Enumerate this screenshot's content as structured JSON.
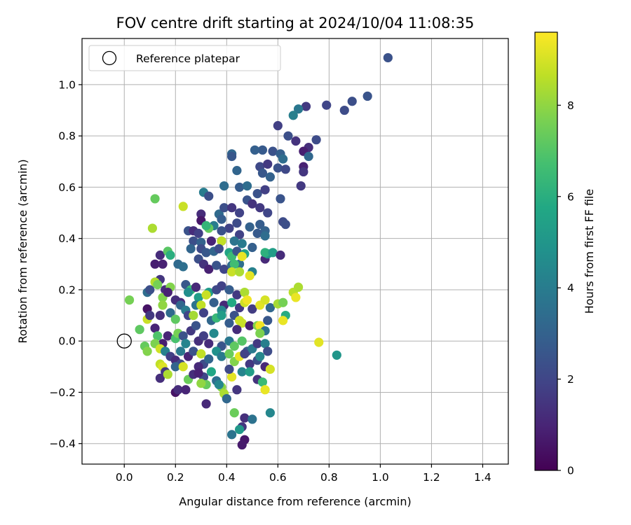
{
  "chart_data": {
    "type": "scatter",
    "title": "FOV centre drift starting at 2024/10/04 11:08:35",
    "xlabel": "Angular distance from reference (arcmin)",
    "ylabel": "Rotation from reference (arcmin)",
    "xlim": [
      -0.165,
      1.5
    ],
    "ylim": [
      -0.48,
      1.18
    ],
    "xticks": [
      0.0,
      0.2,
      0.4,
      0.6,
      0.8,
      1.0,
      1.2,
      1.4
    ],
    "xtick_labels": [
      "0.0",
      "0.2",
      "0.4",
      "0.6",
      "0.8",
      "1.0",
      "1.2",
      "1.4"
    ],
    "yticks": [
      -0.4,
      -0.2,
      0.0,
      0.2,
      0.4,
      0.6,
      0.8,
      1.0
    ],
    "ytick_labels": [
      "−0.4",
      "−0.2",
      "0.0",
      "0.2",
      "0.4",
      "0.6",
      "0.8",
      "1.0"
    ],
    "grid": true,
    "legend": {
      "placement": "top-left",
      "entries": [
        "Reference platepar"
      ]
    },
    "reference_point": {
      "x": 0.0,
      "y": 0.0
    },
    "colorbar": {
      "label": "Hours from first FF file",
      "colormap": "viridis",
      "range": [
        0,
        9.6
      ],
      "ticks": [
        0,
        2,
        4,
        6,
        8
      ],
      "tick_labels": [
        "0",
        "2",
        "4",
        "6",
        "8"
      ]
    },
    "points": [
      [
        1.03,
        1.105,
        2.4
      ],
      [
        0.95,
        0.955,
        2.5
      ],
      [
        0.89,
        0.935,
        2.3
      ],
      [
        0.86,
        0.9,
        2.2
      ],
      [
        0.79,
        0.92,
        2.0
      ],
      [
        0.71,
        0.915,
        1.6
      ],
      [
        0.68,
        0.905,
        3.8
      ],
      [
        0.66,
        0.88,
        4.1
      ],
      [
        0.75,
        0.785,
        2.2
      ],
      [
        0.72,
        0.755,
        1.3
      ],
      [
        0.64,
        0.8,
        2.3
      ],
      [
        0.6,
        0.84,
        1.8
      ],
      [
        0.67,
        0.78,
        1.4
      ],
      [
        0.7,
        0.74,
        0.8
      ],
      [
        0.72,
        0.72,
        3.2
      ],
      [
        0.54,
        0.745,
        2.7
      ],
      [
        0.58,
        0.74,
        2.4
      ],
      [
        0.61,
        0.73,
        2.9
      ],
      [
        0.62,
        0.71,
        3.4
      ],
      [
        0.42,
        0.73,
        3.2
      ],
      [
        0.42,
        0.72,
        2.6
      ],
      [
        0.51,
        0.745,
        2.9
      ],
      [
        0.53,
        0.68,
        2.1
      ],
      [
        0.56,
        0.69,
        1.6
      ],
      [
        0.6,
        0.675,
        2.4
      ],
      [
        0.63,
        0.67,
        2.1
      ],
      [
        0.7,
        0.68,
        0.9
      ],
      [
        0.7,
        0.66,
        1.5
      ],
      [
        0.44,
        0.665,
        3.1
      ],
      [
        0.54,
        0.655,
        2.6
      ],
      [
        0.57,
        0.64,
        3.0
      ],
      [
        0.39,
        0.605,
        3.4
      ],
      [
        0.45,
        0.6,
        2.8
      ],
      [
        0.48,
        0.605,
        3.4
      ],
      [
        0.52,
        0.575,
        2.4
      ],
      [
        0.55,
        0.59,
        1.8
      ],
      [
        0.69,
        0.605,
        1.6
      ],
      [
        0.31,
        0.58,
        4.0
      ],
      [
        0.33,
        0.565,
        2.3
      ],
      [
        0.37,
        0.495,
        3.3
      ],
      [
        0.39,
        0.52,
        2.3
      ],
      [
        0.42,
        0.52,
        1.5
      ],
      [
        0.45,
        0.5,
        1.9
      ],
      [
        0.48,
        0.55,
        2.5
      ],
      [
        0.5,
        0.535,
        1.4
      ],
      [
        0.53,
        0.52,
        1.6
      ],
      [
        0.56,
        0.5,
        2.0
      ],
      [
        0.61,
        0.555,
        2.5
      ],
      [
        0.3,
        0.495,
        1.2
      ],
      [
        0.35,
        0.45,
        4.0
      ],
      [
        0.38,
        0.475,
        2.8
      ],
      [
        0.41,
        0.44,
        1.9
      ],
      [
        0.44,
        0.46,
        2.2
      ],
      [
        0.49,
        0.445,
        3.0
      ],
      [
        0.53,
        0.455,
        2.8
      ],
      [
        0.55,
        0.43,
        3.0
      ],
      [
        0.62,
        0.465,
        2.2
      ],
      [
        0.63,
        0.455,
        2.3
      ],
      [
        0.12,
        0.555,
        7.3
      ],
      [
        0.23,
        0.525,
        8.8
      ],
      [
        0.11,
        0.44,
        8.4
      ],
      [
        0.33,
        0.44,
        7.3
      ],
      [
        0.3,
        0.47,
        0.6
      ],
      [
        0.32,
        0.45,
        6.3
      ],
      [
        0.25,
        0.43,
        2.4
      ],
      [
        0.27,
        0.43,
        1.2
      ],
      [
        0.29,
        0.42,
        1.8
      ],
      [
        0.38,
        0.43,
        2.4
      ],
      [
        0.45,
        0.415,
        1.9
      ],
      [
        0.52,
        0.42,
        2.7
      ],
      [
        0.55,
        0.41,
        3.4
      ],
      [
        0.27,
        0.39,
        2.3
      ],
      [
        0.3,
        0.385,
        3.0
      ],
      [
        0.34,
        0.39,
        1.0
      ],
      [
        0.38,
        0.39,
        2.2
      ],
      [
        0.43,
        0.39,
        3.7
      ],
      [
        0.46,
        0.38,
        3.9
      ],
      [
        0.5,
        0.365,
        2.9
      ],
      [
        0.55,
        0.32,
        1.1
      ],
      [
        0.56,
        0.34,
        5.0
      ],
      [
        0.38,
        0.39,
        8.7
      ],
      [
        0.14,
        0.335,
        1.2
      ],
      [
        0.17,
        0.35,
        7.1
      ],
      [
        0.18,
        0.335,
        6.0
      ],
      [
        0.26,
        0.36,
        3.1
      ],
      [
        0.3,
        0.36,
        2.2
      ],
      [
        0.32,
        0.345,
        2.6
      ],
      [
        0.35,
        0.35,
        3.1
      ],
      [
        0.37,
        0.36,
        2.2
      ],
      [
        0.41,
        0.345,
        5.6
      ],
      [
        0.42,
        0.33,
        6.5
      ],
      [
        0.44,
        0.35,
        2.5
      ],
      [
        0.47,
        0.34,
        5.5
      ],
      [
        0.55,
        0.345,
        6.1
      ],
      [
        0.58,
        0.345,
        5.3
      ],
      [
        0.61,
        0.335,
        1.2
      ],
      [
        0.12,
        0.3,
        0.8
      ],
      [
        0.15,
        0.3,
        0.9
      ],
      [
        0.21,
        0.3,
        3.3
      ],
      [
        0.23,
        0.29,
        3.5
      ],
      [
        0.29,
        0.32,
        2.3
      ],
      [
        0.31,
        0.3,
        1.4
      ],
      [
        0.33,
        0.28,
        0.9
      ],
      [
        0.36,
        0.295,
        2.5
      ],
      [
        0.39,
        0.28,
        2.0
      ],
      [
        0.42,
        0.295,
        3.3
      ],
      [
        0.45,
        0.3,
        3.5
      ],
      [
        0.46,
        0.33,
        9.3
      ],
      [
        0.43,
        0.3,
        6.6
      ],
      [
        0.5,
        0.27,
        4.2
      ],
      [
        0.42,
        0.27,
        8.8
      ],
      [
        0.45,
        0.27,
        8.4
      ],
      [
        0.14,
        0.24,
        1.5
      ],
      [
        0.16,
        0.2,
        1.3
      ],
      [
        0.18,
        0.21,
        7.8
      ],
      [
        0.24,
        0.22,
        2.6
      ],
      [
        0.26,
        0.2,
        6.5
      ],
      [
        0.28,
        0.21,
        1.1
      ],
      [
        0.33,
        0.19,
        5.2
      ],
      [
        0.36,
        0.2,
        2.1
      ],
      [
        0.38,
        0.215,
        1.9
      ],
      [
        0.41,
        0.2,
        2.8
      ],
      [
        0.44,
        0.18,
        1.6
      ],
      [
        0.47,
        0.19,
        8.4
      ],
      [
        0.49,
        0.255,
        9.2
      ],
      [
        0.09,
        0.19,
        3.4
      ],
      [
        0.1,
        0.2,
        2.3
      ],
      [
        0.12,
        0.23,
        8.5
      ],
      [
        0.13,
        0.22,
        7.6
      ],
      [
        0.15,
        0.17,
        7.8
      ],
      [
        0.17,
        0.19,
        0.9
      ],
      [
        0.2,
        0.16,
        1.3
      ],
      [
        0.22,
        0.15,
        1.2
      ],
      [
        0.25,
        0.19,
        4.7
      ],
      [
        0.29,
        0.17,
        5.3
      ],
      [
        0.32,
        0.18,
        8.8
      ],
      [
        0.35,
        0.15,
        2.9
      ],
      [
        0.39,
        0.14,
        1.1
      ],
      [
        0.42,
        0.15,
        5.8
      ],
      [
        0.45,
        0.13,
        1.6
      ],
      [
        0.47,
        0.15,
        8.9
      ],
      [
        0.48,
        0.16,
        9.4
      ],
      [
        0.5,
        0.125,
        1.7
      ],
      [
        0.53,
        0.14,
        9.2
      ],
      [
        0.55,
        0.16,
        9.0
      ],
      [
        0.57,
        0.13,
        3.2
      ],
      [
        0.6,
        0.145,
        8.3
      ],
      [
        0.62,
        0.15,
        7.6
      ],
      [
        0.66,
        0.19,
        8.6
      ],
      [
        0.68,
        0.21,
        8.4
      ],
      [
        0.67,
        0.17,
        9.3
      ],
      [
        0.63,
        0.1,
        5.9
      ],
      [
        0.62,
        0.08,
        9.3
      ],
      [
        0.02,
        0.16,
        7.6
      ],
      [
        0.06,
        0.045,
        7.2
      ],
      [
        0.09,
        0.085,
        8.8
      ],
      [
        0.09,
        0.125,
        0.5
      ],
      [
        0.1,
        0.1,
        1.6
      ],
      [
        0.12,
        0.05,
        1.0
      ],
      [
        0.14,
        0.1,
        1.3
      ],
      [
        0.15,
        0.14,
        8.0
      ],
      [
        0.18,
        0.11,
        3.3
      ],
      [
        0.2,
        0.085,
        7.2
      ],
      [
        0.22,
        0.14,
        3.2
      ],
      [
        0.24,
        0.12,
        4.0
      ],
      [
        0.25,
        0.1,
        2.0
      ],
      [
        0.27,
        0.1,
        8.3
      ],
      [
        0.28,
        0.14,
        3.7
      ],
      [
        0.3,
        0.14,
        8.7
      ],
      [
        0.31,
        0.11,
        1.9
      ],
      [
        0.34,
        0.08,
        3.2
      ],
      [
        0.36,
        0.09,
        6.4
      ],
      [
        0.38,
        0.12,
        4.4
      ],
      [
        0.38,
        0.1,
        5.3
      ],
      [
        0.41,
        0.07,
        2.8
      ],
      [
        0.43,
        0.1,
        2.4
      ],
      [
        0.45,
        0.08,
        8.9
      ],
      [
        0.46,
        0.07,
        8.8
      ],
      [
        0.49,
        0.06,
        0.8
      ],
      [
        0.52,
        0.06,
        7.8
      ],
      [
        0.53,
        0.06,
        9.4
      ],
      [
        0.55,
        0.04,
        3.6
      ],
      [
        0.56,
        0.08,
        2.6
      ],
      [
        0.44,
        0.045,
        1.2
      ],
      [
        0.76,
        -0.005,
        9.2
      ],
      [
        0.83,
        -0.055,
        5.0
      ],
      [
        0.13,
        0.02,
        6.9
      ],
      [
        0.15,
        -0.01,
        0.8
      ],
      [
        0.17,
        0.02,
        1.0
      ],
      [
        0.2,
        0.01,
        6.8
      ],
      [
        0.21,
        0.03,
        7.6
      ],
      [
        0.23,
        0.02,
        2.4
      ],
      [
        0.24,
        -0.01,
        4.3
      ],
      [
        0.26,
        0.04,
        1.6
      ],
      [
        0.28,
        0.06,
        2.5
      ],
      [
        0.29,
        0.0,
        1.3
      ],
      [
        0.31,
        0.02,
        1.8
      ],
      [
        0.33,
        -0.01,
        1.2
      ],
      [
        0.35,
        0.03,
        4.5
      ],
      [
        0.38,
        -0.02,
        2.5
      ],
      [
        0.41,
        0.0,
        3.8
      ],
      [
        0.43,
        -0.02,
        7.2
      ],
      [
        0.46,
        0.0,
        7.0
      ],
      [
        0.48,
        -0.04,
        2.8
      ],
      [
        0.5,
        -0.03,
        3.9
      ],
      [
        0.52,
        -0.01,
        1.6
      ],
      [
        0.55,
        -0.01,
        4.1
      ],
      [
        0.56,
        -0.04,
        2.2
      ],
      [
        0.08,
        -0.02,
        7.3
      ],
      [
        0.09,
        -0.04,
        7.8
      ],
      [
        0.12,
        -0.01,
        7.7
      ],
      [
        0.14,
        -0.03,
        8.9
      ],
      [
        0.16,
        -0.04,
        4.2
      ],
      [
        0.18,
        -0.06,
        1.8
      ],
      [
        0.2,
        -0.075,
        1.2
      ],
      [
        0.22,
        -0.09,
        2.1
      ],
      [
        0.25,
        -0.06,
        1.0
      ],
      [
        0.27,
        -0.04,
        2.4
      ],
      [
        0.3,
        -0.05,
        8.7
      ],
      [
        0.31,
        -0.09,
        2.2
      ],
      [
        0.33,
        -0.07,
        3.1
      ],
      [
        0.36,
        -0.04,
        4.8
      ],
      [
        0.38,
        -0.06,
        3.9
      ],
      [
        0.41,
        -0.05,
        7.4
      ],
      [
        0.43,
        -0.08,
        7.8
      ],
      [
        0.45,
        -0.06,
        9.3
      ],
      [
        0.47,
        -0.05,
        1.9
      ],
      [
        0.49,
        -0.09,
        1.6
      ],
      [
        0.52,
        -0.075,
        2.3
      ],
      [
        0.53,
        -0.06,
        4.4
      ],
      [
        0.55,
        -0.1,
        1.1
      ],
      [
        0.57,
        -0.11,
        9.0
      ],
      [
        0.14,
        -0.09,
        8.7
      ],
      [
        0.15,
        -0.1,
        9.1
      ],
      [
        0.16,
        -0.12,
        1.6
      ],
      [
        0.14,
        -0.145,
        1.3
      ],
      [
        0.17,
        -0.13,
        8.4
      ],
      [
        0.2,
        -0.1,
        3.1
      ],
      [
        0.23,
        -0.1,
        9.0
      ],
      [
        0.25,
        -0.15,
        7.4
      ],
      [
        0.27,
        -0.13,
        1.3
      ],
      [
        0.29,
        -0.1,
        1.1
      ],
      [
        0.31,
        -0.14,
        2.0
      ],
      [
        0.32,
        -0.17,
        7.3
      ],
      [
        0.34,
        -0.12,
        5.7
      ],
      [
        0.36,
        -0.155,
        3.5
      ],
      [
        0.38,
        -0.18,
        7.9
      ],
      [
        0.39,
        -0.205,
        8.4
      ],
      [
        0.4,
        -0.225,
        3.2
      ],
      [
        0.42,
        -0.14,
        9.2
      ],
      [
        0.44,
        -0.19,
        1.5
      ],
      [
        0.46,
        -0.12,
        4.3
      ],
      [
        0.49,
        -0.12,
        5.3
      ],
      [
        0.52,
        -0.15,
        1.4
      ],
      [
        0.54,
        -0.16,
        6.5
      ],
      [
        0.55,
        -0.19,
        9.3
      ],
      [
        0.2,
        -0.2,
        0.5
      ],
      [
        0.21,
        -0.19,
        1.2
      ],
      [
        0.24,
        -0.19,
        1.0
      ],
      [
        0.32,
        -0.245,
        1.1
      ],
      [
        0.43,
        -0.28,
        7.4
      ],
      [
        0.47,
        -0.3,
        1.3
      ],
      [
        0.5,
        -0.305,
        3.6
      ],
      [
        0.57,
        -0.28,
        4.4
      ],
      [
        0.46,
        -0.335,
        1.5
      ],
      [
        0.45,
        -0.345,
        5.1
      ],
      [
        0.42,
        -0.365,
        3.7
      ],
      [
        0.47,
        -0.385,
        0.6
      ],
      [
        0.46,
        -0.405,
        0.7
      ],
      [
        0.3,
        -0.165,
        8.0
      ],
      [
        0.29,
        -0.125,
        0.9
      ],
      [
        0.37,
        -0.17,
        4.4
      ],
      [
        0.22,
        -0.04,
        3.9
      ],
      [
        0.41,
        -0.11,
        2.1
      ],
      [
        0.53,
        0.03,
        7.7
      ]
    ]
  }
}
